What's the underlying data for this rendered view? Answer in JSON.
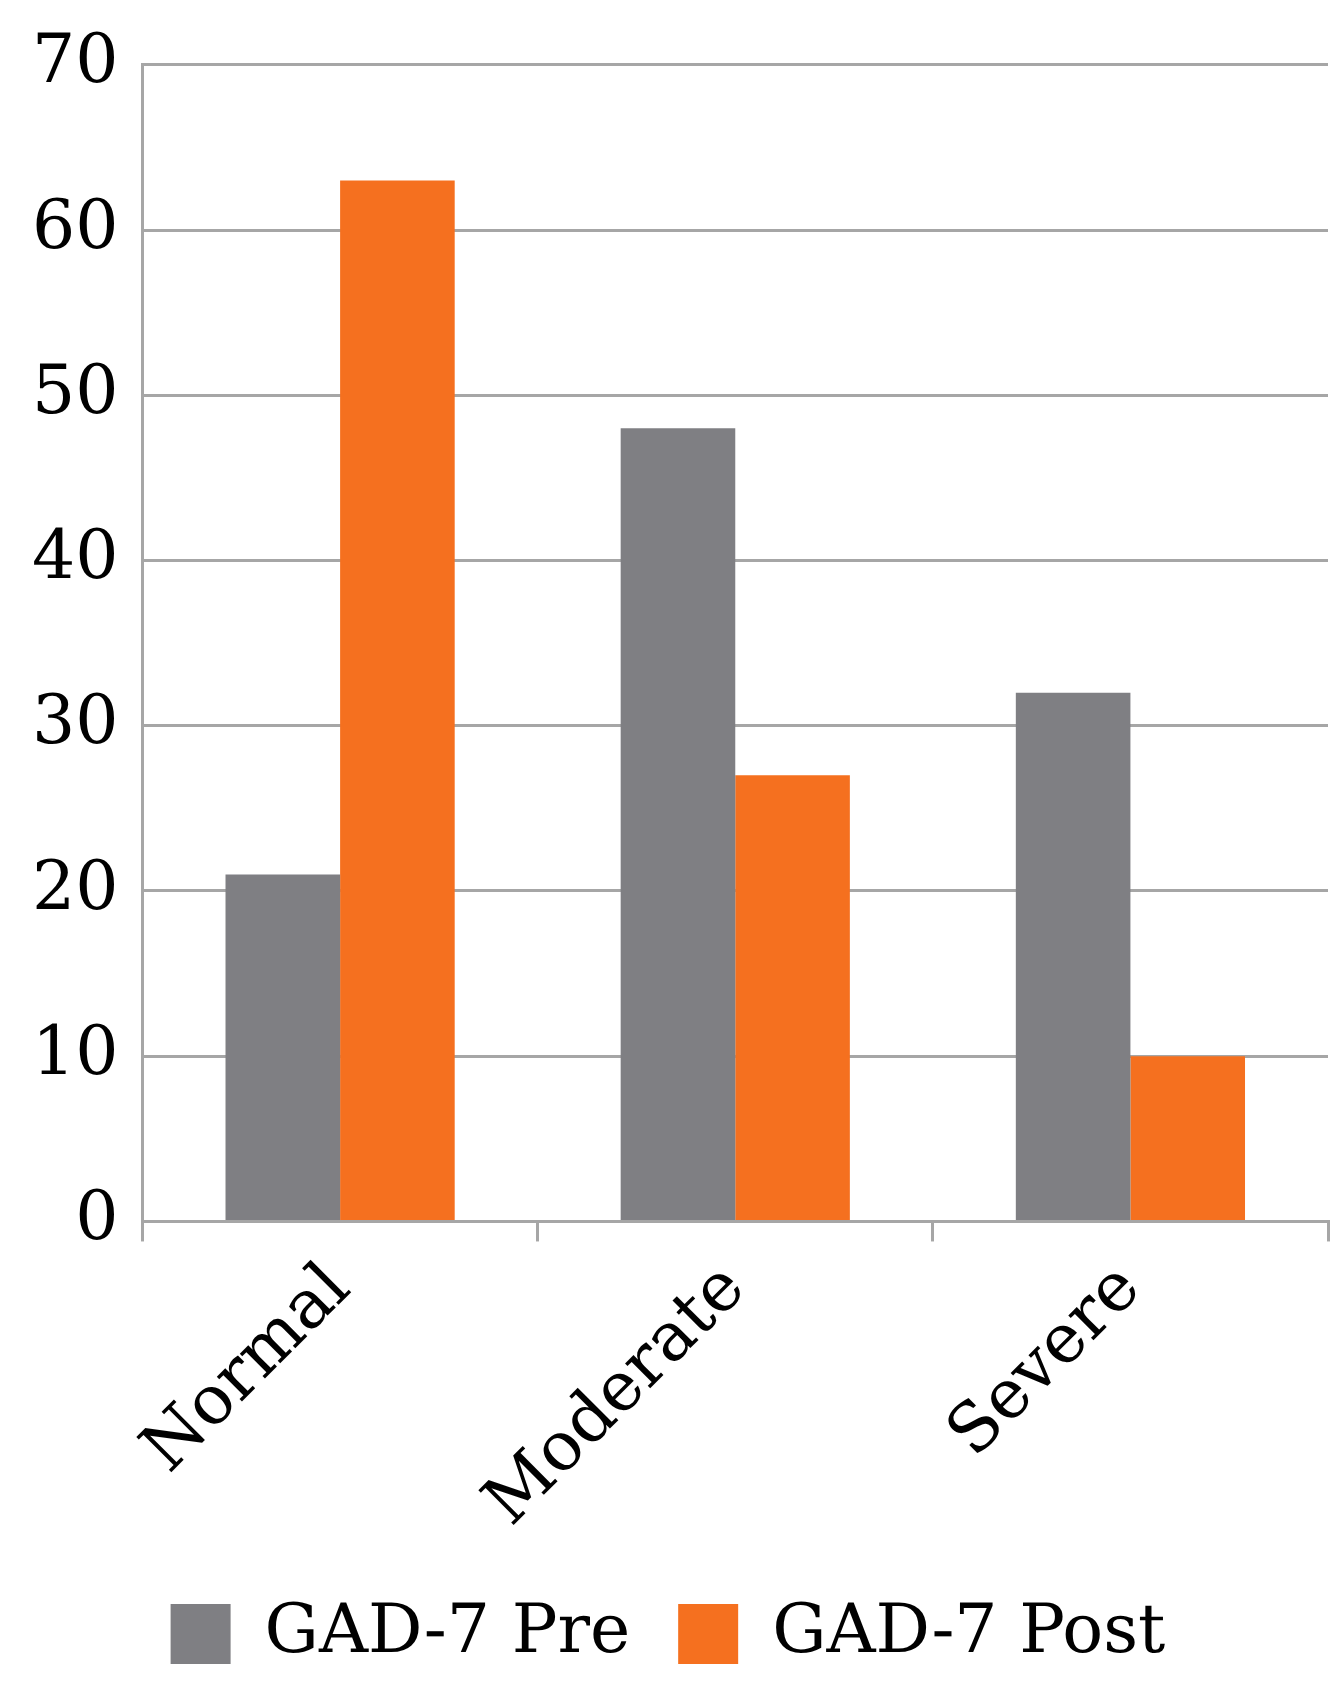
{
  "chart_data": {
    "type": "bar",
    "categories": [
      "Normal",
      "Moderate",
      "Severe"
    ],
    "series": [
      {
        "name": "GAD-7 Pre",
        "color": "#7f7f83",
        "values": [
          21,
          48,
          32
        ]
      },
      {
        "name": "GAD-7 Post",
        "color": "#f5701f",
        "values": [
          63,
          27,
          10
        ]
      }
    ],
    "ylim": [
      0,
      70
    ],
    "yticks": [
      0,
      10,
      20,
      30,
      40,
      50,
      60,
      70
    ],
    "grid": "y",
    "legend": "bottom"
  }
}
